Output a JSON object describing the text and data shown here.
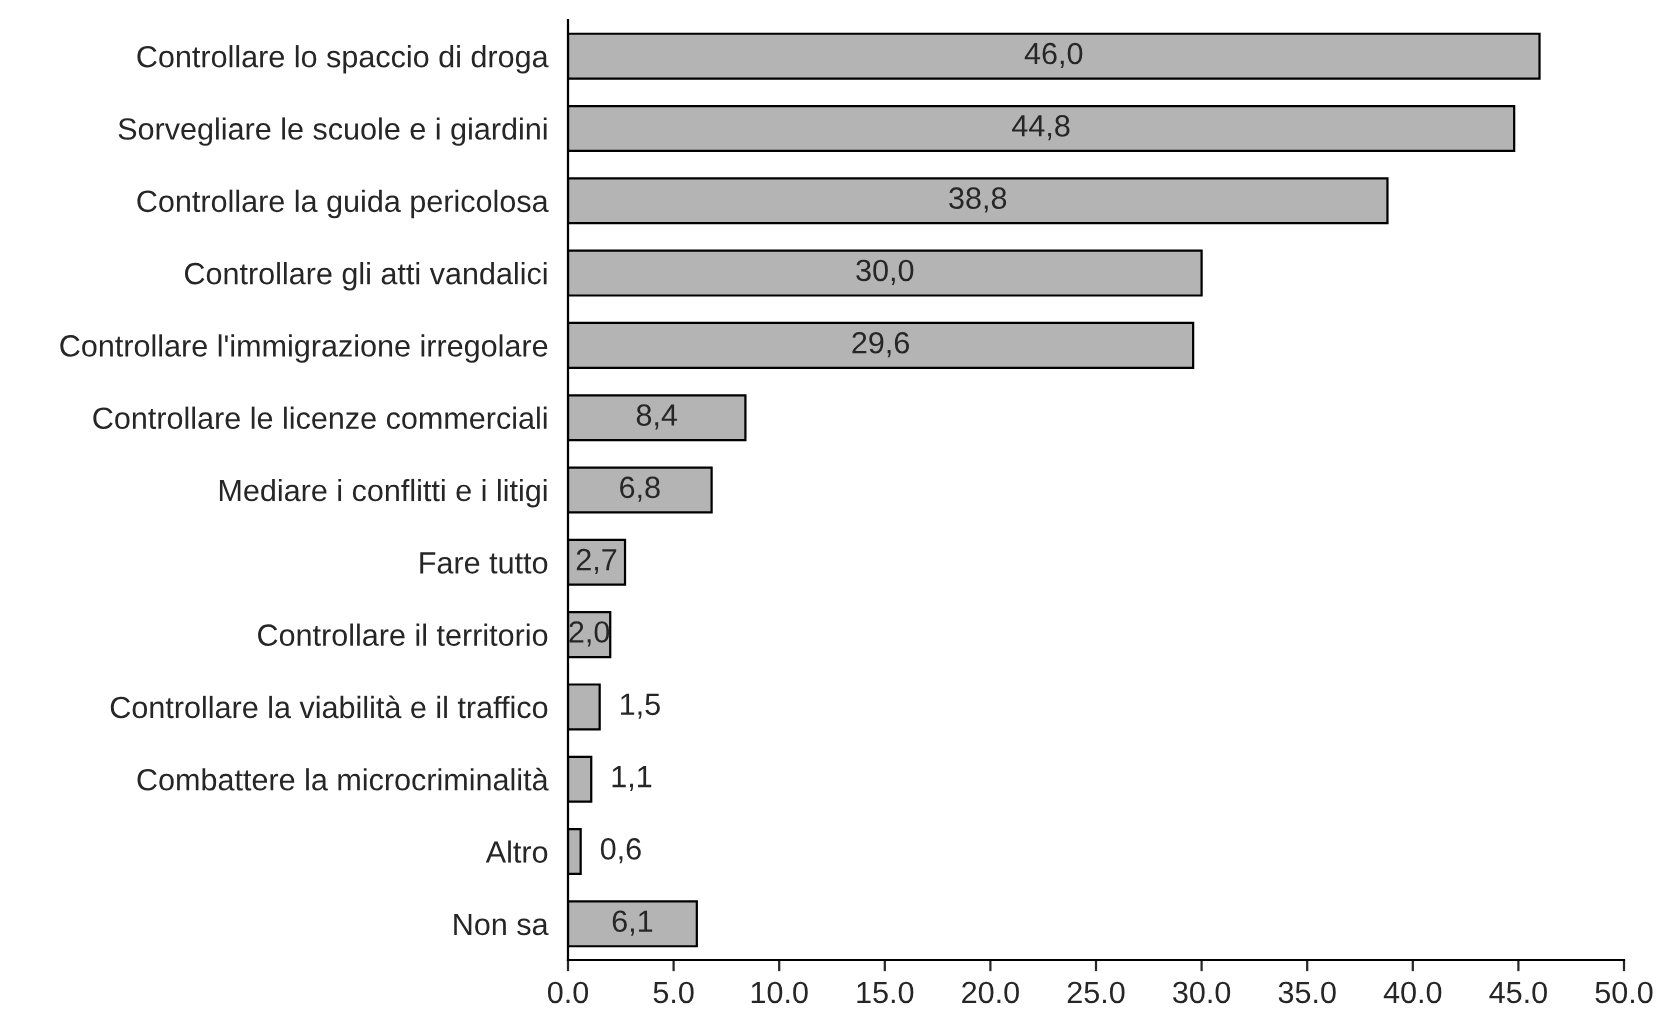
{
  "chart_data": {
    "type": "bar",
    "orientation": "horizontal",
    "categories": [
      "Controllare lo spaccio di droga",
      "Sorvegliare le scuole e i giardini",
      "Controllare la guida pericolosa",
      "Controllare gli atti vandalici",
      "Controllare l'immigrazione irregolare",
      "Controllare le licenze commerciali",
      "Mediare i conflitti e i litigi",
      "Fare tutto",
      "Controllare il territorio",
      "Controllare la viabilità e il traffico",
      "Combattere la microcriminalità",
      "Altro",
      "Non sa"
    ],
    "values": [
      46.0,
      44.8,
      38.8,
      30.0,
      29.6,
      8.4,
      6.8,
      2.7,
      2.0,
      1.5,
      1.1,
      0.6,
      6.1
    ],
    "value_labels": [
      "46,0",
      "44,8",
      "38,8",
      "30,0",
      "29,6",
      "8,4",
      "6,8",
      "2,7",
      "2,0",
      "1,5",
      "1,1",
      "0,6",
      "6,1"
    ],
    "color": "#b4b4b4",
    "xlim": [
      0,
      50
    ],
    "xticks": [
      {
        "value": 0,
        "label": "0.0"
      },
      {
        "value": 5,
        "label": "5.0"
      },
      {
        "value": 10,
        "label": "10.0"
      },
      {
        "value": 15,
        "label": "15.0"
      },
      {
        "value": 20,
        "label": "20.0"
      },
      {
        "value": 25,
        "label": "25.0"
      },
      {
        "value": 30,
        "label": "30.0"
      },
      {
        "value": 35,
        "label": "35.0"
      },
      {
        "value": 40,
        "label": "40.0"
      },
      {
        "value": 45,
        "label": "45.0"
      },
      {
        "value": 50,
        "label": "50.0"
      }
    ],
    "grid": false,
    "legend": false
  }
}
